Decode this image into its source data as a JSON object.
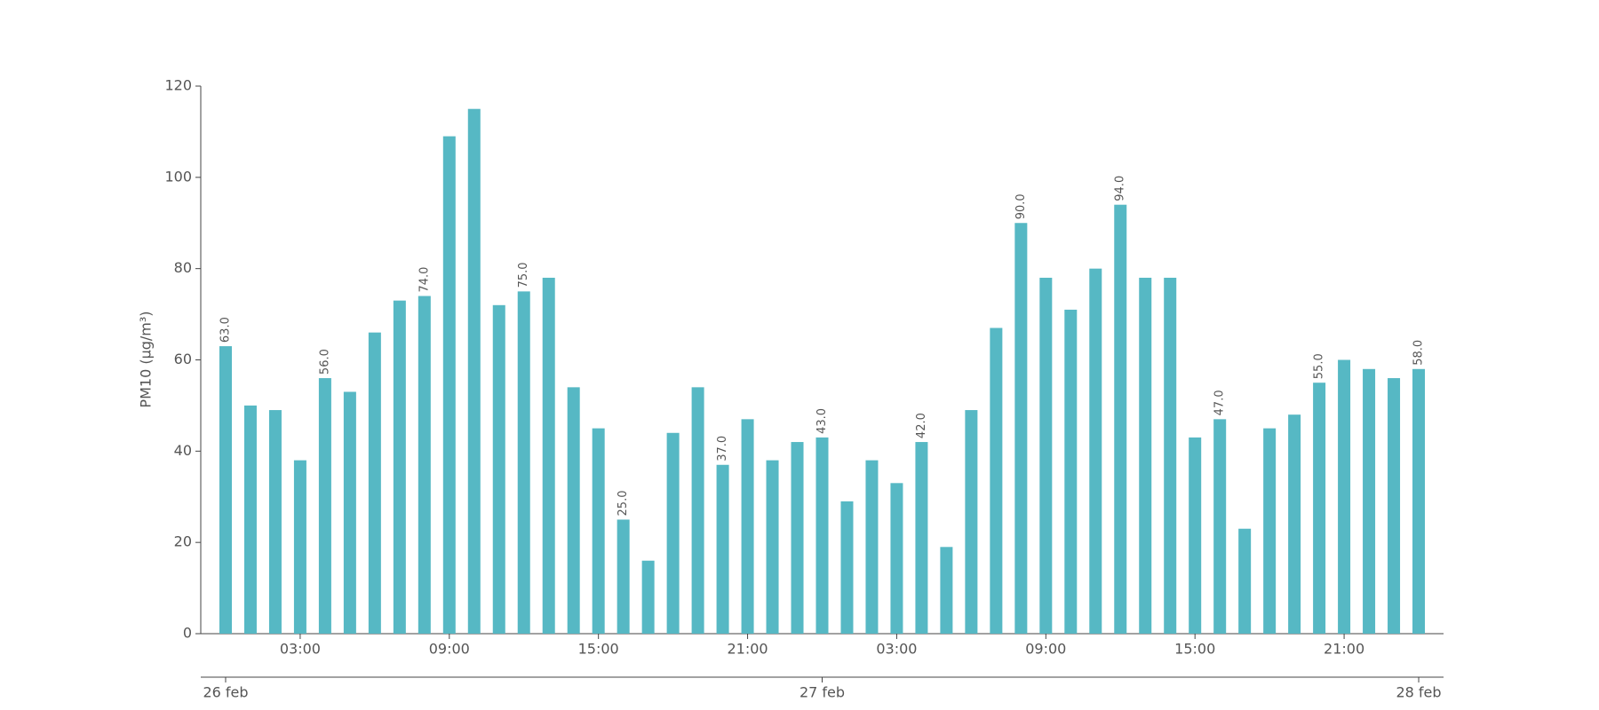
{
  "chart_data": {
    "type": "bar",
    "ylabel": "PM10 (μg/m³)",
    "categories": [
      null,
      null,
      null,
      "03:00",
      null,
      null,
      null,
      null,
      null,
      "09:00",
      null,
      null,
      null,
      null,
      null,
      "15:00",
      null,
      null,
      null,
      null,
      null,
      "21:00",
      null,
      null,
      null,
      null,
      null,
      "03:00",
      null,
      null,
      null,
      null,
      null,
      "09:00",
      null,
      null,
      null,
      null,
      null,
      "15:00",
      null,
      null,
      null,
      null,
      null,
      "21:00",
      null,
      null,
      null
    ],
    "date_categories": [
      "26 feb",
      null,
      null,
      null,
      null,
      null,
      null,
      null,
      null,
      null,
      null,
      null,
      null,
      null,
      null,
      null,
      null,
      null,
      null,
      null,
      null,
      null,
      null,
      null,
      "27 feb",
      null,
      null,
      null,
      null,
      null,
      null,
      null,
      null,
      null,
      null,
      null,
      null,
      null,
      null,
      null,
      null,
      null,
      null,
      null,
      null,
      null,
      null,
      null,
      "28 feb"
    ],
    "values": [
      63,
      50,
      49,
      38,
      56,
      53,
      66,
      73,
      74,
      109,
      115,
      72,
      75,
      78,
      54,
      45,
      25,
      16,
      44,
      54,
      37,
      47,
      38,
      42,
      43,
      29,
      38,
      33,
      42,
      19,
      49,
      67,
      90,
      78,
      71,
      80,
      94,
      78,
      78,
      43,
      47,
      23,
      45,
      48,
      55,
      60,
      58,
      56,
      58
    ],
    "value_labels": [
      "63.0",
      null,
      null,
      null,
      "56.0",
      null,
      null,
      null,
      "74.0",
      null,
      null,
      null,
      "75.0",
      null,
      null,
      null,
      "25.0",
      null,
      null,
      null,
      "37.0",
      null,
      null,
      null,
      "43.0",
      null,
      null,
      null,
      "42.0",
      null,
      null,
      null,
      "90.0",
      null,
      null,
      null,
      "94.0",
      null,
      null,
      null,
      "47.0",
      null,
      null,
      null,
      "55.0",
      null,
      null,
      null,
      "58.0"
    ],
    "color": "#56b8c4",
    "ylim": [
      0,
      120
    ],
    "yticks": [
      0,
      20,
      40,
      60,
      80,
      100,
      120
    ]
  }
}
